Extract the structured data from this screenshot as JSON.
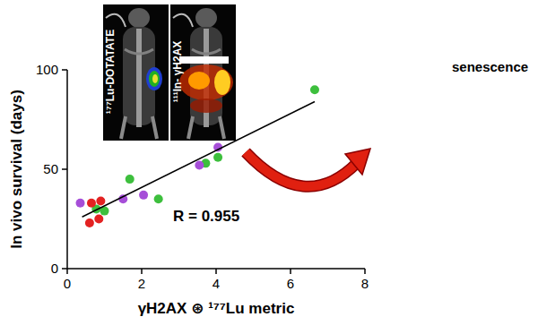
{
  "chart_data": {
    "type": "scatter",
    "x_label": "γH2AX ⊛ ¹⁷⁷Lu metric",
    "y_label": "In vivo survival (days)",
    "annotations": [
      "R = 0.955",
      "senescence"
    ],
    "inset_labels": [
      "¹⁷⁷Lu-DOTATATE",
      "¹¹¹In- γH2AX"
    ],
    "xlim": [
      0,
      8
    ],
    "ylim": [
      0,
      100
    ],
    "xticks": [
      0,
      2,
      4,
      6,
      8
    ],
    "yticks": [
      0,
      50,
      100
    ],
    "grid": false,
    "series": [
      {
        "type": "scatter",
        "marker": "circle",
        "color": "#3dbf3d",
        "x": [
          6.65,
          4.05,
          3.72,
          2.45,
          1.68,
          1.0,
          0.78
        ],
        "values": [
          90,
          56,
          53,
          35,
          45,
          29,
          30
        ]
      },
      {
        "type": "scatter",
        "marker": "circle",
        "color": "#a64ed8",
        "x": [
          4.05,
          3.55,
          2.05,
          1.5,
          0.35
        ],
        "values": [
          61,
          52,
          37,
          35,
          33
        ]
      },
      {
        "type": "scatter",
        "marker": "circle",
        "color": "#e32222",
        "x": [
          0.65,
          0.9,
          0.85,
          0.6
        ],
        "values": [
          33,
          34,
          25,
          23
        ]
      },
      {
        "type": "line",
        "line_style": "solid",
        "color": "#000000",
        "x": [
          0.4,
          6.65
        ],
        "values": [
          26,
          84
        ]
      }
    ]
  }
}
